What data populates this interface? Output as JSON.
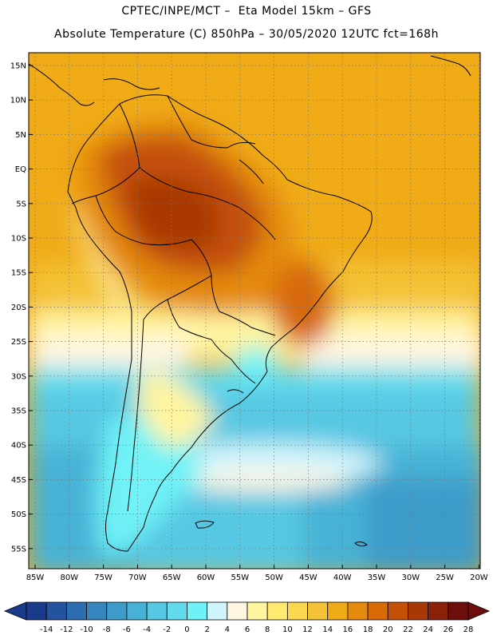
{
  "title": {
    "line1": "CPTEC/INPE/MCT –  Eta Model 15km – GFS",
    "line2": "Absolute Temperature (C) 850hPa – 30/05/2020 12UTC fct=168h"
  },
  "map": {
    "lat_labels": [
      "15N",
      "10N",
      "5N",
      "EQ",
      "5S",
      "10S",
      "15S",
      "20S",
      "25S",
      "30S",
      "35S",
      "40S",
      "45S",
      "50S",
      "55S"
    ],
    "lon_labels": [
      "85W",
      "80W",
      "75W",
      "70W",
      "65W",
      "60W",
      "55W",
      "50W",
      "45W",
      "40W",
      "35W",
      "30W",
      "25W",
      "20W"
    ]
  },
  "colorbar": {
    "labels": [
      "-14",
      "-12",
      "-10",
      "-8",
      "-6",
      "-4",
      "-2",
      "0",
      "2",
      "4",
      "6",
      "8",
      "10",
      "12",
      "14",
      "16",
      "18",
      "20",
      "22",
      "24",
      "26",
      "28"
    ],
    "colors": [
      "#1a3a8c",
      "#23529e",
      "#2c6db0",
      "#3585bf",
      "#3d9bca",
      "#47b2d6",
      "#56c8e3",
      "#62dced",
      "#6ff2f7",
      "#d0f4fb",
      "#fff6e2",
      "#fff5a0",
      "#ffe970",
      "#fbd84f",
      "#f4c235",
      "#f0ab18",
      "#e48a0c",
      "#d86b08",
      "#c45007",
      "#a83805",
      "#8a220a",
      "#6d0e0c"
    ]
  }
}
